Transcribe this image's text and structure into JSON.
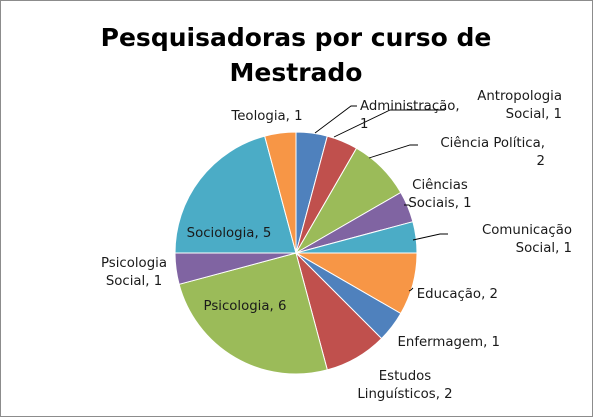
{
  "chart_data": {
    "type": "pie",
    "title_lines": [
      "Pesquisadoras por curso de",
      "Mestrado"
    ],
    "slices": [
      {
        "label_lines": [
          "Administração,",
          "1"
        ],
        "value": 1,
        "color": "#4F81BD"
      },
      {
        "label_lines": [
          "Antropologia",
          "Social, 1"
        ],
        "value": 1,
        "color": "#C0504D"
      },
      {
        "label_lines": [
          "Ciência Política,",
          "2"
        ],
        "value": 2,
        "color": "#9BBB59"
      },
      {
        "label_lines": [
          "Ciências",
          "Sociais, 1"
        ],
        "value": 1,
        "color": "#8064A2"
      },
      {
        "label_lines": [
          "Comunicação",
          "Social, 1"
        ],
        "value": 1,
        "color": "#4BACC6"
      },
      {
        "label_lines": [
          "Educação, 2"
        ],
        "value": 2,
        "color": "#F79646"
      },
      {
        "label_lines": [
          "Enfermagem, 1"
        ],
        "value": 1,
        "color": "#4F81BD"
      },
      {
        "label_lines": [
          "Estudos",
          "Linguísticos, 2"
        ],
        "value": 2,
        "color": "#C0504D"
      },
      {
        "label_lines": [
          "Psicologia, 6"
        ],
        "value": 6,
        "color": "#9BBB59"
      },
      {
        "label_lines": [
          "Psicologia",
          "Social, 1"
        ],
        "value": 1,
        "color": "#8064A2"
      },
      {
        "label_lines": [
          "Sociologia, 5"
        ],
        "value": 5,
        "color": "#4BACC6"
      },
      {
        "label_lines": [
          "Teologia, 1"
        ],
        "value": 1,
        "color": "#F79646"
      }
    ]
  }
}
